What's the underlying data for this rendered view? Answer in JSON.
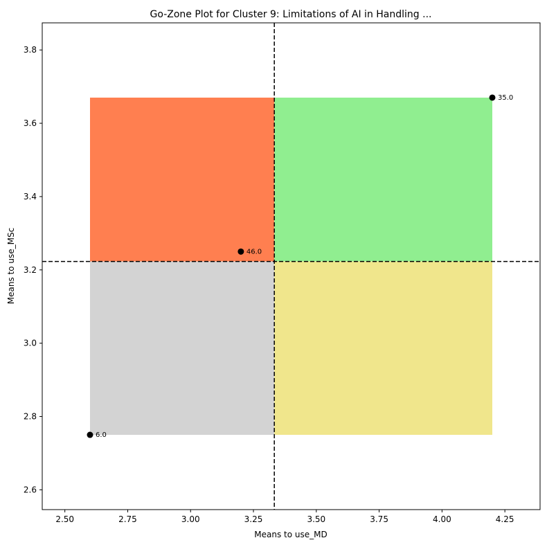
{
  "chart_data": {
    "type": "scatter",
    "title": "Go-Zone Plot for Cluster 9: Limitations of AI in Handling ...",
    "xlabel": "Means to use_MD",
    "ylabel": "Means to use_MSc",
    "xlim": [
      2.41,
      4.39
    ],
    "ylim": [
      2.546,
      3.874
    ],
    "x_ticks": [
      2.5,
      2.75,
      3.0,
      3.25,
      3.5,
      3.75,
      4.0,
      4.25
    ],
    "x_tick_labels": [
      "2.50",
      "2.75",
      "3.00",
      "3.25",
      "3.50",
      "3.75",
      "4.00",
      "4.25"
    ],
    "y_ticks": [
      2.6,
      2.8,
      3.0,
      3.2,
      3.4,
      3.6,
      3.8
    ],
    "y_tick_labels": [
      "2.6",
      "2.8",
      "3.0",
      "3.2",
      "3.4",
      "3.6",
      "3.8"
    ],
    "grid": false,
    "mean_lines": {
      "x": 3.333,
      "y": 3.223,
      "style": "dashed",
      "color": "#000000"
    },
    "quadrants": [
      {
        "name": "top-left",
        "color": "#ff7f50",
        "x": [
          2.6,
          3.333
        ],
        "y": [
          3.223,
          3.67
        ]
      },
      {
        "name": "top-right",
        "color": "#90ee90",
        "x": [
          3.333,
          4.2
        ],
        "y": [
          3.223,
          3.67
        ]
      },
      {
        "name": "bottom-left",
        "color": "#d3d3d3",
        "x": [
          2.6,
          3.333
        ],
        "y": [
          2.75,
          3.223
        ]
      },
      {
        "name": "bottom-right",
        "color": "#f0e68c",
        "x": [
          3.333,
          4.2
        ],
        "y": [
          2.75,
          3.223
        ]
      }
    ],
    "points": [
      {
        "x": 4.2,
        "y": 3.67,
        "label": "35.0"
      },
      {
        "x": 3.2,
        "y": 3.25,
        "label": "46.0"
      },
      {
        "x": 2.6,
        "y": 2.75,
        "label": "6.0"
      }
    ],
    "point_color": "#000000"
  }
}
